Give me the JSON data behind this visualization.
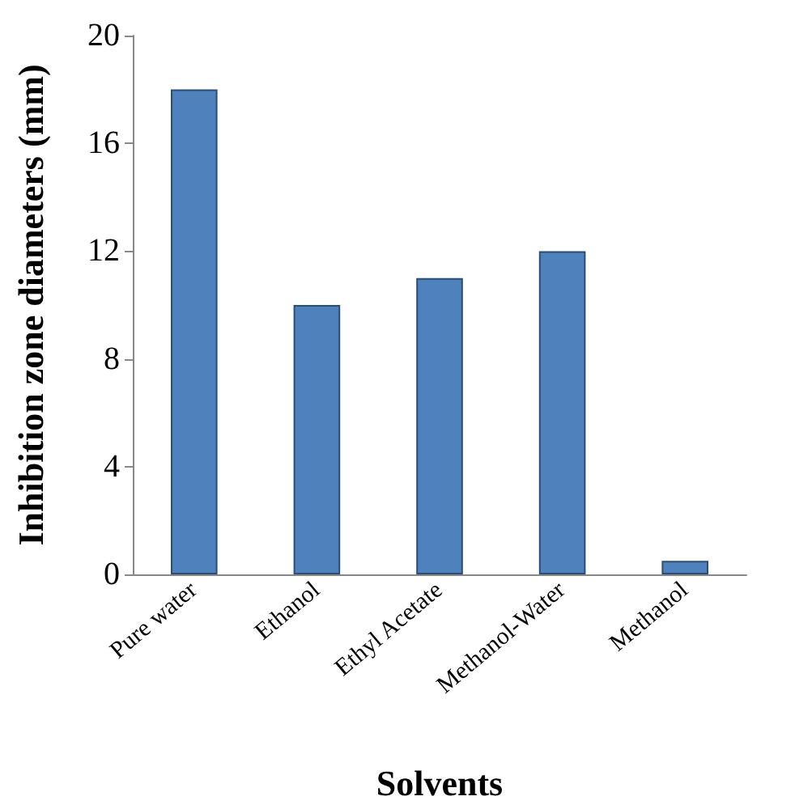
{
  "chart_data": {
    "type": "bar",
    "xlabel": "Solvents",
    "ylabel": "Inhibition zone diameters (mm)",
    "categories": [
      "Pure water",
      "Ethanol",
      "Ethyl Acetate",
      "Methanol-Water",
      "Methanol"
    ],
    "values": [
      18,
      10,
      11,
      12,
      0.5
    ],
    "color": "#4f81bd",
    "ylim": [
      0,
      20
    ],
    "yticks": [
      0,
      4,
      8,
      12,
      16,
      20
    ],
    "grid": false
  }
}
